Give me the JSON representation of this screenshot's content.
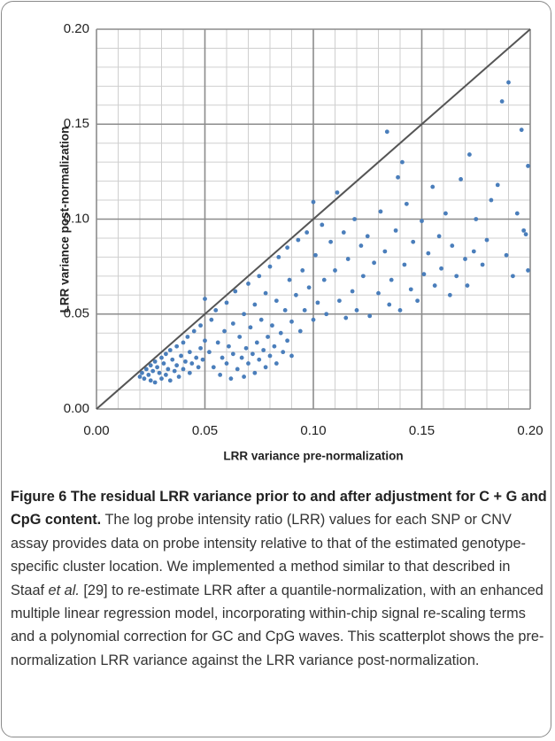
{
  "chart_data": {
    "type": "scatter",
    "xlabel": "LRR variance pre-normalization",
    "ylabel": "LRR variance post-normalization",
    "xlim": [
      0,
      0.2
    ],
    "ylim": [
      0,
      0.2
    ],
    "xticks": [
      {
        "value": 0,
        "label": "0.00"
      },
      0.05,
      {
        "value": 0.1,
        "label": "0.10"
      },
      0.15,
      {
        "value": 0.2,
        "label": "0.20"
      }
    ],
    "yticks": [
      {
        "value": 0,
        "label": "0.00"
      },
      0.05,
      {
        "value": 0.1,
        "label": "0.10"
      },
      0.15,
      {
        "value": 0.2,
        "label": "0.20"
      }
    ],
    "xminorticks": [
      0.01,
      0.02,
      0.03,
      0.04,
      0.06,
      0.07,
      0.08,
      0.09,
      0.11,
      0.12,
      0.13,
      0.14,
      0.16,
      0.17,
      0.18,
      0.19
    ],
    "yminorticks": [
      0.01,
      0.02,
      0.03,
      0.04,
      0.06,
      0.07,
      0.08,
      0.09,
      0.11,
      0.12,
      0.13,
      0.14,
      0.16,
      0.17,
      0.18,
      0.19
    ],
    "grid": true,
    "color": "#4a7ebb",
    "reference_line": {
      "x": [
        0,
        0.2
      ],
      "y": [
        0,
        0.2
      ],
      "color": "#555555"
    },
    "x": [
      0.02,
      0.021,
      0.022,
      0.023,
      0.024,
      0.025,
      0.025,
      0.026,
      0.027,
      0.027,
      0.028,
      0.029,
      0.03,
      0.03,
      0.031,
      0.032,
      0.032,
      0.033,
      0.034,
      0.034,
      0.035,
      0.036,
      0.037,
      0.037,
      0.038,
      0.039,
      0.04,
      0.04,
      0.041,
      0.042,
      0.043,
      0.043,
      0.044,
      0.045,
      0.046,
      0.047,
      0.048,
      0.048,
      0.049,
      0.05,
      0.05,
      0.052,
      0.053,
      0.054,
      0.055,
      0.056,
      0.057,
      0.058,
      0.059,
      0.06,
      0.06,
      0.061,
      0.062,
      0.063,
      0.063,
      0.064,
      0.065,
      0.066,
      0.067,
      0.068,
      0.068,
      0.069,
      0.07,
      0.07,
      0.071,
      0.072,
      0.073,
      0.073,
      0.074,
      0.075,
      0.075,
      0.076,
      0.077,
      0.078,
      0.078,
      0.079,
      0.08,
      0.08,
      0.081,
      0.082,
      0.083,
      0.083,
      0.084,
      0.085,
      0.086,
      0.087,
      0.088,
      0.088,
      0.089,
      0.09,
      0.09,
      0.092,
      0.093,
      0.094,
      0.095,
      0.096,
      0.097,
      0.098,
      0.1,
      0.1,
      0.101,
      0.102,
      0.104,
      0.105,
      0.106,
      0.108,
      0.11,
      0.111,
      0.112,
      0.114,
      0.115,
      0.116,
      0.118,
      0.119,
      0.12,
      0.122,
      0.123,
      0.125,
      0.126,
      0.128,
      0.13,
      0.131,
      0.133,
      0.134,
      0.135,
      0.136,
      0.138,
      0.139,
      0.14,
      0.141,
      0.142,
      0.143,
      0.145,
      0.146,
      0.148,
      0.15,
      0.151,
      0.153,
      0.155,
      0.156,
      0.158,
      0.159,
      0.161,
      0.163,
      0.164,
      0.166,
      0.168,
      0.17,
      0.171,
      0.172,
      0.174,
      0.175,
      0.178,
      0.18,
      0.182,
      0.185,
      0.187,
      0.189,
      0.19,
      0.192,
      0.194,
      0.196,
      0.197,
      0.198,
      0.199,
      0.199
    ],
    "values": [
      0.017,
      0.019,
      0.016,
      0.021,
      0.018,
      0.023,
      0.015,
      0.02,
      0.025,
      0.014,
      0.022,
      0.019,
      0.027,
      0.016,
      0.024,
      0.029,
      0.018,
      0.021,
      0.031,
      0.015,
      0.026,
      0.02,
      0.033,
      0.023,
      0.017,
      0.028,
      0.035,
      0.021,
      0.025,
      0.038,
      0.019,
      0.03,
      0.024,
      0.041,
      0.027,
      0.022,
      0.044,
      0.032,
      0.026,
      0.058,
      0.036,
      0.03,
      0.047,
      0.022,
      0.052,
      0.035,
      0.018,
      0.027,
      0.041,
      0.056,
      0.024,
      0.033,
      0.016,
      0.029,
      0.045,
      0.062,
      0.021,
      0.038,
      0.027,
      0.05,
      0.017,
      0.032,
      0.066,
      0.024,
      0.043,
      0.029,
      0.055,
      0.019,
      0.035,
      0.07,
      0.026,
      0.047,
      0.031,
      0.022,
      0.061,
      0.038,
      0.028,
      0.075,
      0.044,
      0.033,
      0.057,
      0.024,
      0.08,
      0.04,
      0.03,
      0.052,
      0.085,
      0.036,
      0.068,
      0.028,
      0.046,
      0.06,
      0.089,
      0.041,
      0.073,
      0.052,
      0.093,
      0.064,
      0.109,
      0.047,
      0.081,
      0.056,
      0.097,
      0.068,
      0.05,
      0.088,
      0.073,
      0.114,
      0.057,
      0.093,
      0.048,
      0.079,
      0.062,
      0.1,
      0.052,
      0.086,
      0.07,
      0.091,
      0.049,
      0.077,
      0.061,
      0.104,
      0.083,
      0.146,
      0.055,
      0.068,
      0.094,
      0.122,
      0.052,
      0.13,
      0.076,
      0.108,
      0.063,
      0.088,
      0.057,
      0.099,
      0.071,
      0.082,
      0.117,
      0.065,
      0.091,
      0.074,
      0.103,
      0.06,
      0.086,
      0.07,
      0.121,
      0.079,
      0.065,
      0.134,
      0.083,
      0.1,
      0.076,
      0.089,
      0.11,
      0.118,
      0.162,
      0.081,
      0.172,
      0.07,
      0.103,
      0.147,
      0.094,
      0.092,
      0.128,
      0.073
    ]
  },
  "caption": {
    "label": "Figure 6",
    "title": "The residual LRR variance prior to and after adjustment for C + G and CpG content.",
    "text_1": "The log probe intensity ratio (LRR) values for each SNP or CNV assay provides data on probe intensity relative to that of the estimated genotype-specific cluster location. We implemented a method similar to that described in Staaf ",
    "italic": "et al.",
    "text_2": " [29] to re-estimate LRR after a quantile-normalization, with an enhanced multiple linear regression model, incorporating within-chip signal re-scaling terms and a polynomial correction for GC and CpG waves. This scatterplot shows the pre-normalization LRR variance against the LRR variance post-normalization."
  }
}
